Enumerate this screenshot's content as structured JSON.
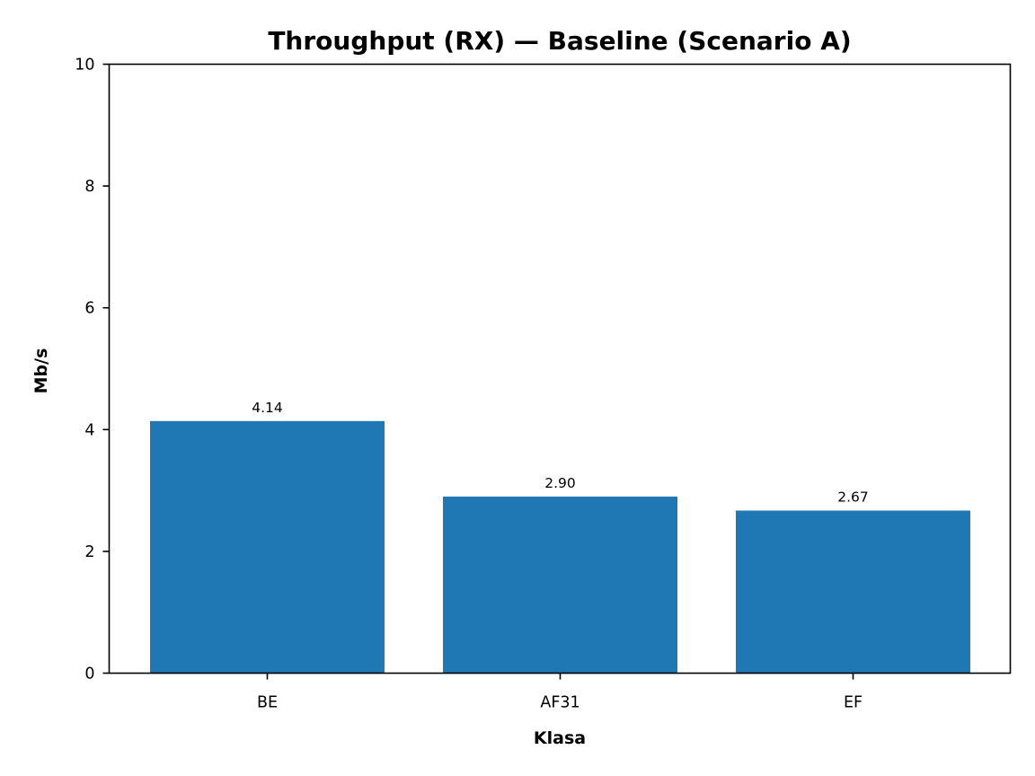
{
  "chart_data": {
    "type": "bar",
    "title": "Throughput (RX) — Baseline (Scenario A)",
    "xlabel": "Klasa",
    "ylabel": "Mb/s",
    "categories": [
      "BE",
      "AF31",
      "EF"
    ],
    "values": [
      4.14,
      2.9,
      2.67
    ],
    "value_labels": [
      "4.14",
      "2.90",
      "2.67"
    ],
    "ylim": [
      0,
      10
    ],
    "yticks": [
      0,
      2,
      4,
      6,
      8,
      10
    ],
    "ytick_labels": [
      "0",
      "2",
      "4",
      "6",
      "8",
      "10"
    ],
    "bar_color": "#1f77b4",
    "grid": false,
    "legend": "none"
  }
}
